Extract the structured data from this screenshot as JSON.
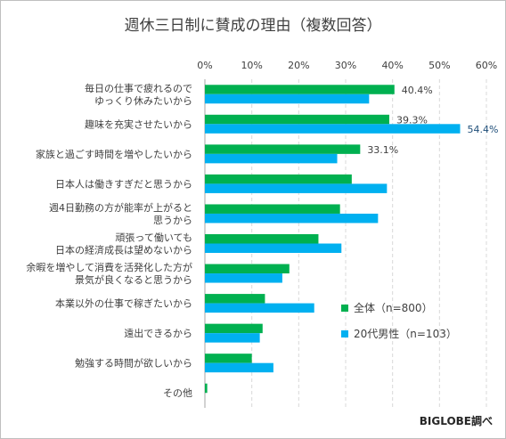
{
  "chart_data": {
    "type": "bar",
    "orientation": "horizontal",
    "title": "週休三日制に賛成の理由（複数回答）",
    "source": "BIGLOBE調べ",
    "xlim": [
      0,
      60
    ],
    "x_ticks": [
      "0%",
      "10%",
      "20%",
      "30%",
      "40%",
      "50%",
      "60%"
    ],
    "x_axis_position": "top",
    "grid": true,
    "legend_position": "bottom-right",
    "categories": [
      [
        "毎日の仕事で疲れるので",
        "ゆっくり休みたいから"
      ],
      [
        "趣味を充実させたいから"
      ],
      [
        "家族と過ごす時間を増やしたいから"
      ],
      [
        "日本人は働きすぎだと思うから"
      ],
      [
        "週4日勤務の方が能率が上がると",
        "思うから"
      ],
      [
        "頑張って働いても",
        "日本の経済成長は望めないから"
      ],
      [
        "余暇を増やして消費を活発化した方が",
        "景気が良くなると思うから"
      ],
      [
        "本業以外の仕事で稼ぎたいから"
      ],
      [
        "遠出できるから"
      ],
      [
        "勉強する時間が欲しいから"
      ],
      [
        "その他"
      ]
    ],
    "series": [
      {
        "name": "全体（n=800）",
        "color": "#00b050",
        "values": [
          40.4,
          39.3,
          33.1,
          31.3,
          28.8,
          24.2,
          18.0,
          12.8,
          12.3,
          10.0,
          0.5
        ],
        "labels": [
          "40.4%",
          "39.3%",
          "33.1%",
          "",
          "",
          "",
          "",
          "",
          "",
          "",
          ""
        ]
      },
      {
        "name": "20代男性（n=103）",
        "color": "#00b0f0",
        "values": [
          35.0,
          54.4,
          28.2,
          38.8,
          36.9,
          29.1,
          16.5,
          23.3,
          11.7,
          14.6,
          0.0
        ],
        "labels": [
          "",
          "54.4%",
          "",
          "",
          "",
          "",
          "",
          "",
          "",
          "",
          ""
        ]
      }
    ],
    "label_color_highlight": "#1f4e79"
  }
}
